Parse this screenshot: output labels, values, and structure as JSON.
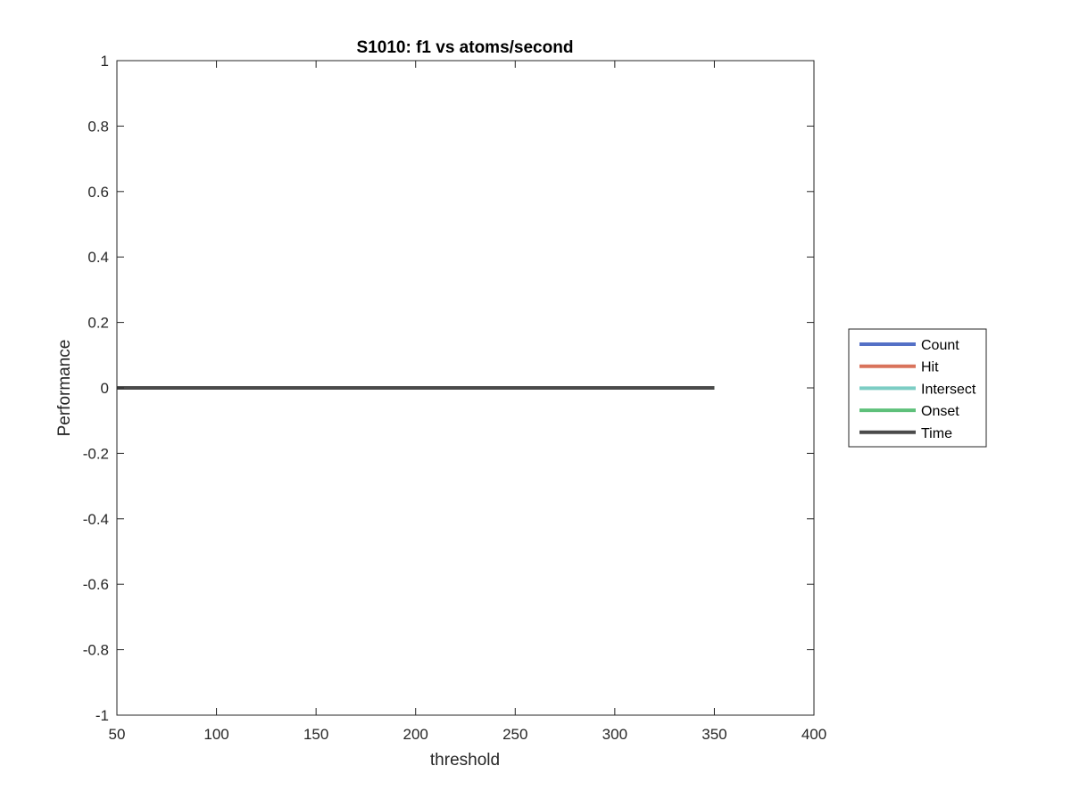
{
  "chart_data": {
    "type": "line",
    "title": "S1010: f1 vs atoms/second",
    "xlabel": "threshold",
    "ylabel": "Performance",
    "xlim": [
      50,
      400
    ],
    "ylim": [
      -1,
      1
    ],
    "xticks": [
      50,
      100,
      150,
      200,
      250,
      300,
      350,
      400
    ],
    "yticks": [
      -1,
      -0.8,
      -0.6,
      -0.4,
      -0.2,
      0,
      0.2,
      0.4,
      0.6,
      0.8,
      1
    ],
    "grid": false,
    "legend_position": "outside-right",
    "series": [
      {
        "name": "Count",
        "color": "#5470c6",
        "x": [
          50,
          350
        ],
        "y": [
          0,
          0
        ]
      },
      {
        "name": "Hit",
        "color": "#d9735b",
        "x": [
          50,
          350
        ],
        "y": [
          0,
          0
        ]
      },
      {
        "name": "Intersect",
        "color": "#7ccdc4",
        "x": [
          50,
          350
        ],
        "y": [
          0,
          0
        ]
      },
      {
        "name": "Onset",
        "color": "#5ec07a",
        "x": [
          50,
          350
        ],
        "y": [
          0,
          0
        ]
      },
      {
        "name": "Time",
        "color": "#4a4a4a",
        "x": [
          50,
          350
        ],
        "y": [
          0,
          0
        ]
      }
    ]
  }
}
